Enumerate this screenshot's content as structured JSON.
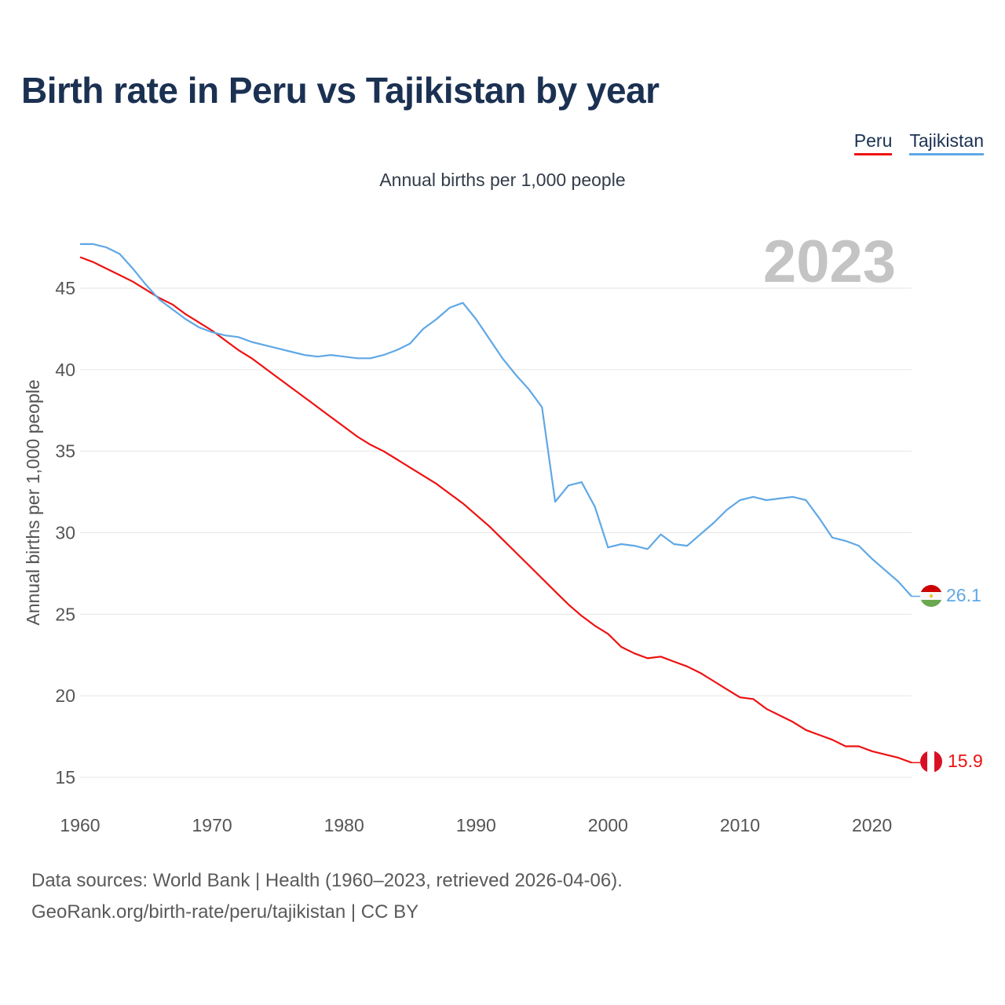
{
  "title": "Birth rate in Peru vs Tajikistan by year",
  "subtitle": "Annual births per 1,000 people",
  "year_label": "2023",
  "legend": [
    {
      "name": "Peru",
      "color": "#ee1111"
    },
    {
      "name": "Tajikistan",
      "color": "#5fa8e6"
    }
  ],
  "footer": {
    "sources": "Data sources: World Bank | Health (1960–2023, retrieved 2026-04-06).",
    "link": "GeoRank.org/birth-rate/peru/tajikistan | CC BY"
  },
  "chart_data": {
    "type": "line",
    "title": "Birth rate in Peru vs Tajikistan by year",
    "ylabel": "Annual births per 1,000 people",
    "xlabel": "",
    "xlim": [
      1960,
      2023
    ],
    "ylim": [
      14,
      48
    ],
    "x_ticks": [
      1960,
      1970,
      1980,
      1990,
      2000,
      2010,
      2020
    ],
    "y_ticks": [
      15,
      20,
      25,
      30,
      35,
      40,
      45
    ],
    "grid": true,
    "x": [
      1960,
      1961,
      1962,
      1963,
      1964,
      1965,
      1966,
      1967,
      1968,
      1969,
      1970,
      1971,
      1972,
      1973,
      1974,
      1975,
      1976,
      1977,
      1978,
      1979,
      1980,
      1981,
      1982,
      1983,
      1984,
      1985,
      1986,
      1987,
      1988,
      1989,
      1990,
      1991,
      1992,
      1993,
      1994,
      1995,
      1996,
      1997,
      1998,
      1999,
      2000,
      2001,
      2002,
      2003,
      2004,
      2005,
      2006,
      2007,
      2008,
      2009,
      2010,
      2011,
      2012,
      2013,
      2014,
      2015,
      2016,
      2017,
      2018,
      2019,
      2020,
      2021,
      2022,
      2023
    ],
    "series": [
      {
        "name": "Peru",
        "color": "#ee1111",
        "end_label": "15.9",
        "values": [
          46.9,
          46.6,
          46.2,
          45.8,
          45.4,
          44.9,
          44.4,
          44.0,
          43.4,
          42.9,
          42.4,
          41.8,
          41.2,
          40.7,
          40.1,
          39.5,
          38.9,
          38.3,
          37.7,
          37.1,
          36.5,
          35.9,
          35.4,
          35.0,
          34.5,
          34.0,
          33.5,
          33.0,
          32.4,
          31.8,
          31.1,
          30.4,
          29.6,
          28.8,
          28.0,
          27.2,
          26.4,
          25.6,
          24.9,
          24.3,
          23.8,
          23.0,
          22.6,
          22.3,
          22.4,
          22.1,
          21.8,
          21.4,
          20.9,
          20.4,
          19.9,
          19.8,
          19.2,
          18.8,
          18.4,
          17.9,
          17.6,
          17.3,
          16.9,
          16.9,
          16.6,
          16.4,
          16.2,
          15.9
        ]
      },
      {
        "name": "Tajikistan",
        "color": "#5fa8e6",
        "end_label": "26.1",
        "values": [
          47.7,
          47.7,
          47.5,
          47.1,
          46.2,
          45.2,
          44.3,
          43.7,
          43.1,
          42.6,
          42.3,
          42.1,
          42.0,
          41.7,
          41.5,
          41.3,
          41.1,
          40.9,
          40.8,
          40.9,
          40.8,
          40.7,
          40.7,
          40.9,
          41.2,
          41.6,
          42.5,
          43.1,
          43.8,
          44.1,
          43.1,
          41.9,
          40.7,
          39.7,
          38.8,
          37.7,
          31.9,
          32.9,
          33.1,
          31.6,
          29.1,
          29.3,
          29.2,
          29.0,
          29.9,
          29.3,
          29.2,
          29.9,
          30.6,
          31.4,
          32.0,
          32.2,
          32.0,
          32.1,
          32.2,
          32.0,
          30.9,
          29.7,
          29.5,
          29.2,
          28.4,
          27.7,
          27.0,
          26.1
        ]
      }
    ]
  }
}
